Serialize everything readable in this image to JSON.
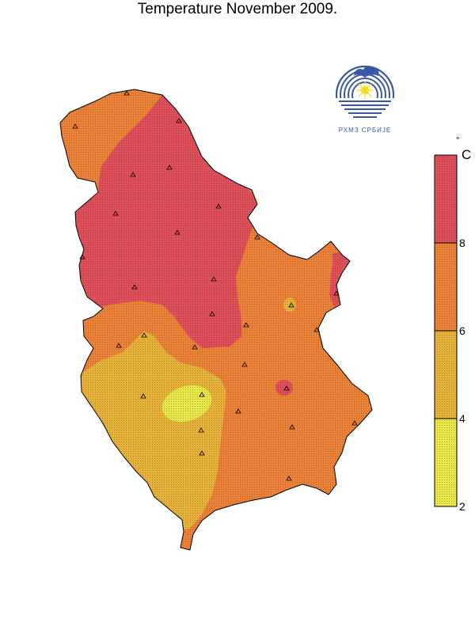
{
  "title": "Temperature November 2009.",
  "legend": {
    "unit": "C",
    "degree_symbol": "°",
    "ticks": [
      "2",
      "4",
      "6",
      "8"
    ],
    "classes": [
      {
        "range": "2–4",
        "color": "#e8e84a"
      },
      {
        "range": "4–6",
        "color": "#e6b23a"
      },
      {
        "range": "6–8",
        "color": "#ec8238"
      },
      {
        "range": "8+",
        "color": "#e0505a"
      }
    ]
  },
  "logo": {
    "text": "РХМЗ СРБИЈЕ",
    "icon": "rhmz-serbia-emblem"
  },
  "colors": {
    "border": "#000000",
    "station_marker": "#000000"
  },
  "stations": {
    "count": 30,
    "marker": "triangle"
  }
}
